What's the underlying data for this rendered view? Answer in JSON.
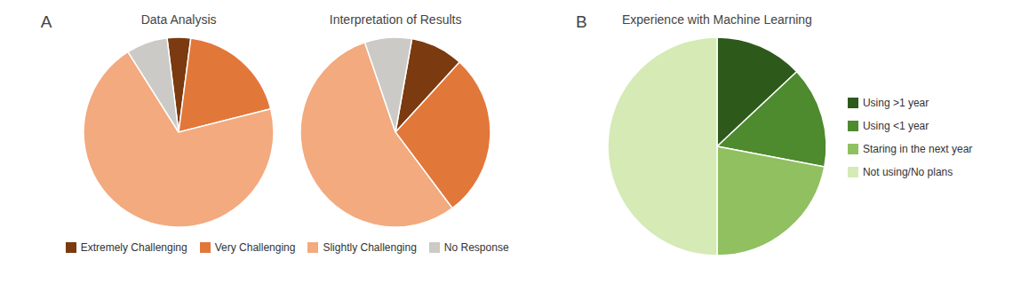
{
  "chart_data": [
    {
      "type": "pie",
      "title": "Data Analysis",
      "categories": [
        "Extremely Challenging",
        "Very Challenging",
        "Slightly Challenging",
        "No Response"
      ],
      "values": [
        4,
        19,
        70,
        7
      ],
      "colors": [
        "#7B3A10",
        "#E2773A",
        "#F2AA7E",
        "#CCCAC6"
      ],
      "annotations": [
        "A"
      ],
      "legend": "bottom"
    },
    {
      "type": "pie",
      "title": "Interpretation of Results",
      "categories": [
        "Extremely Challenging",
        "Very Challenging",
        "Slightly Challenging",
        "No Response"
      ],
      "values": [
        9,
        28,
        55,
        8
      ],
      "colors": [
        "#7B3A10",
        "#E2773A",
        "#F2AA7E",
        "#CCCAC6"
      ],
      "legend": "bottom"
    },
    {
      "type": "pie",
      "title": "Experience with Machine Learning",
      "categories": [
        "Using >1 year",
        "Using <1 year",
        "Staring in the next year",
        "Not using/No plans"
      ],
      "values": [
        13,
        15,
        22,
        50
      ],
      "colors": [
        "#2D5A1B",
        "#4E8A2E",
        "#90C060",
        "#D5EAB5"
      ],
      "annotations": [
        "B"
      ],
      "legend": "right"
    }
  ]
}
